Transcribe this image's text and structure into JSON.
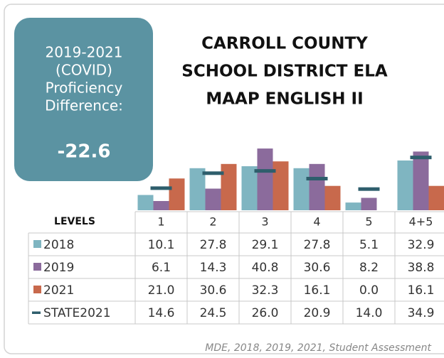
{
  "chart_data": {
    "type": "bar",
    "title": [
      "CARROLL COUNTY",
      "SCHOOL DISTRICT ELA",
      "MAAP ENGLISH II"
    ],
    "annotation": {
      "lines": [
        "2019-2021",
        "(COVID)",
        "Proficiency",
        "Difference:"
      ],
      "value": "-22.6"
    },
    "table_header": "LEVELS",
    "categories": [
      "1",
      "2",
      "3",
      "4",
      "5",
      "4+5"
    ],
    "series": [
      {
        "name": "2018",
        "color": "#7fb5c1",
        "style": "bar",
        "values": [
          10.1,
          27.8,
          29.1,
          27.8,
          5.1,
          32.9
        ],
        "value_labels": [
          "10.1",
          "27.8",
          "29.1",
          "27.8",
          "5.1",
          "32.9"
        ]
      },
      {
        "name": "2019",
        "color": "#8b6b9c",
        "style": "bar",
        "values": [
          6.1,
          14.3,
          40.8,
          30.6,
          8.2,
          38.8
        ],
        "value_labels": [
          "6.1",
          "14.3",
          "40.8",
          "30.6",
          "8.2",
          "38.8"
        ]
      },
      {
        "name": "2021",
        "color": "#c8694c",
        "style": "bar",
        "values": [
          21.0,
          30.6,
          32.3,
          16.1,
          0.0,
          16.1
        ],
        "value_labels": [
          "21.0",
          "30.6",
          "32.3",
          "16.1",
          "0.0",
          "16.1"
        ]
      },
      {
        "name": "STATE2021",
        "color": "#2e5e6c",
        "style": "dash",
        "values": [
          14.6,
          24.5,
          26.0,
          20.9,
          14.0,
          34.9
        ],
        "value_labels": [
          "14.6",
          "24.5",
          "26.0",
          "20.9",
          "14.0",
          "34.9"
        ]
      }
    ],
    "source": "MDE, 2018, 2019, 2021, Student Assessment"
  }
}
